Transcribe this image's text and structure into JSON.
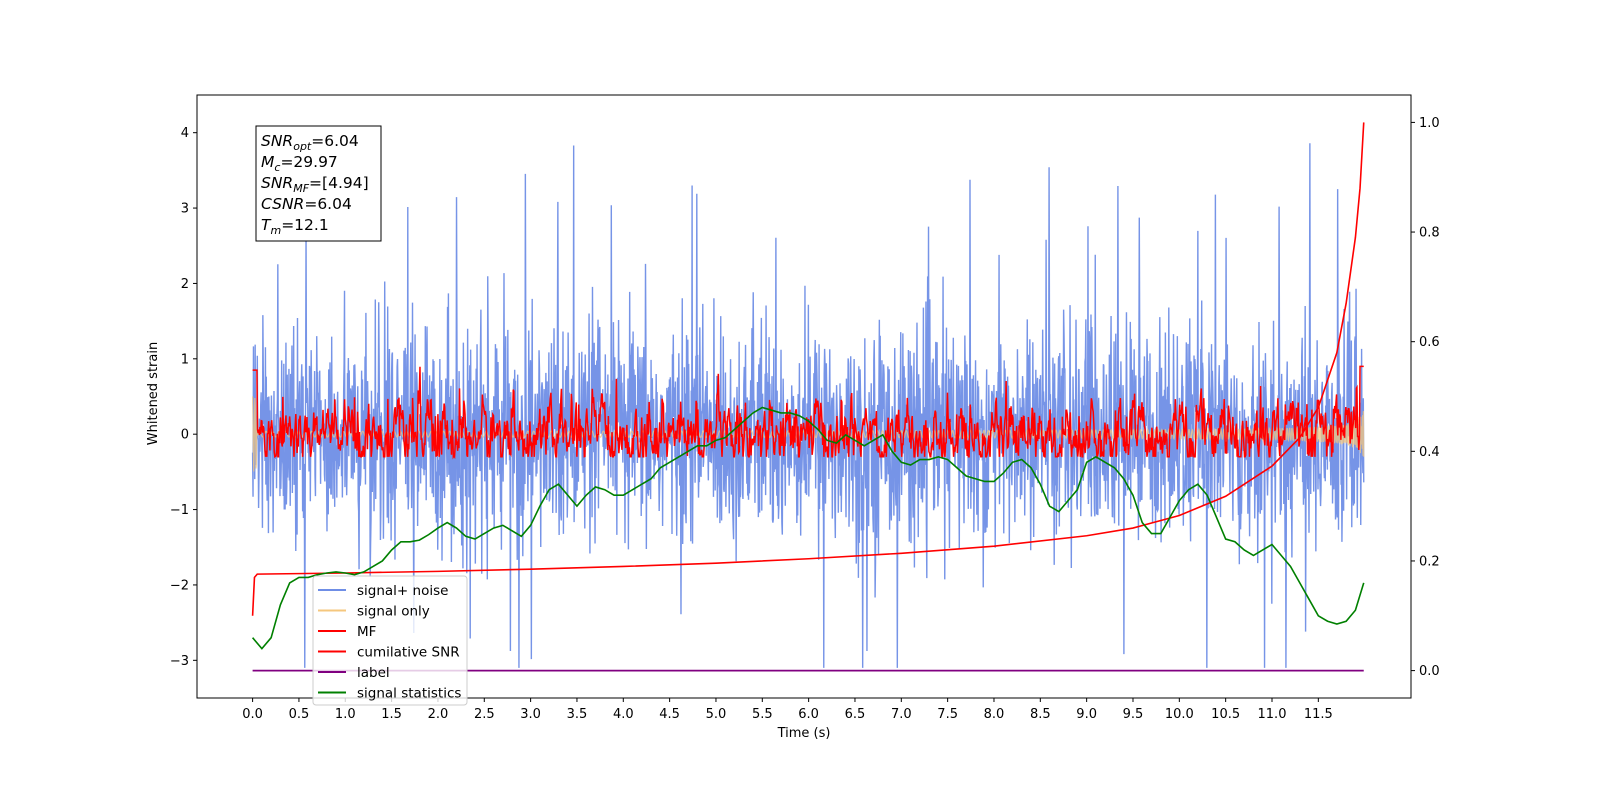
{
  "chart_data": {
    "type": "line",
    "xlabel": "Time (s)",
    "ylabel": "Whitened strain",
    "xlim": [
      -0.6,
      12.5
    ],
    "ylim": [
      -3.5,
      4.5
    ],
    "y2lim": [
      -0.05,
      1.05
    ],
    "x_ticks": [
      "0.0",
      "0.5",
      "1.0",
      "1.5",
      "2.0",
      "2.5",
      "3.0",
      "3.5",
      "4.0",
      "4.5",
      "5.0",
      "5.5",
      "6.0",
      "6.5",
      "7.0",
      "7.5",
      "8.0",
      "8.5",
      "9.0",
      "9.5",
      "10.0",
      "10.5",
      "11.0",
      "11.5"
    ],
    "y_ticks": [
      "4",
      "3",
      "2",
      "1",
      "0",
      "−1",
      "−2",
      "−3"
    ],
    "y_tick_values": [
      4,
      3,
      2,
      1,
      0,
      -1,
      -2,
      -3
    ],
    "y2_ticks": [
      "1.0",
      "0.8",
      "0.6",
      "0.4",
      "0.2",
      "0.0"
    ],
    "y2_tick_values": [
      1.0,
      0.8,
      0.6,
      0.4,
      0.2,
      0.0
    ],
    "annotation": [
      {
        "name": "SNR",
        "sub": "opt",
        "value": "=6.04"
      },
      {
        "name": "M",
        "sub": "c",
        "value": "=29.97"
      },
      {
        "name": "SNR",
        "sub": "MF",
        "value": "=[4.94]"
      },
      {
        "name": "CSNR",
        "sub": "",
        "value": "=6.04"
      },
      {
        "name": "T",
        "sub": "m",
        "value": "=12.1"
      }
    ],
    "legend": {
      "placement": "lower-left",
      "entries": [
        {
          "label": "signal+ noise",
          "color": "#6f8ee6"
        },
        {
          "label": "signal only",
          "color": "#f5c77e"
        },
        {
          "label": "MF",
          "color": "#ff0000"
        },
        {
          "label": "cumilative SNR",
          "color": "#ff0000"
        },
        {
          "label": "label",
          "color": "#800080"
        },
        {
          "label": "signal statistics",
          "color": "#008000"
        }
      ]
    },
    "series": [
      {
        "name": "signal+ noise",
        "axis": "left",
        "color": "#6f8ee6",
        "t_range": [
          0,
          11.99
        ],
        "std": 0.95,
        "y_range": [
          -3.1,
          4.15
        ]
      },
      {
        "name": "signal only",
        "axis": "left",
        "color": "#f5c77e",
        "t_range": [
          0,
          11.99
        ],
        "y_range": [
          -0.85,
          0.85
        ]
      },
      {
        "name": "MF",
        "axis": "left",
        "color": "#ff0000",
        "t_range": [
          0,
          11.99
        ],
        "y_range": [
          -0.3,
          0.95
        ]
      },
      {
        "name": "cumilative SNR",
        "axis": "right",
        "color": "#ff0000",
        "x": [
          0.0,
          0.02,
          0.05,
          1,
          2,
          3,
          4,
          5,
          6,
          7,
          8,
          9,
          9.5,
          10,
          10.5,
          11,
          11.3,
          11.5,
          11.7,
          11.8,
          11.9,
          11.95,
          11.99
        ],
        "values": [
          0.1,
          0.17,
          0.176,
          0.178,
          0.181,
          0.185,
          0.19,
          0.196,
          0.204,
          0.214,
          0.227,
          0.246,
          0.26,
          0.283,
          0.318,
          0.373,
          0.425,
          0.48,
          0.58,
          0.67,
          0.79,
          0.88,
          1.0
        ]
      },
      {
        "name": "label",
        "axis": "right",
        "color": "#800080",
        "x": [
          0,
          11.99
        ],
        "values": [
          0.0,
          0.0
        ]
      },
      {
        "name": "signal statistics",
        "axis": "right",
        "color": "#008000",
        "x": [
          0,
          0.1,
          0.2,
          0.3,
          0.4,
          0.5,
          0.6,
          0.7,
          0.8,
          0.9,
          1.0,
          1.1,
          1.2,
          1.3,
          1.4,
          1.5,
          1.6,
          1.7,
          1.8,
          1.9,
          2.0,
          2.1,
          2.2,
          2.3,
          2.4,
          2.5,
          2.6,
          2.7,
          2.8,
          2.9,
          3.0,
          3.1,
          3.2,
          3.3,
          3.4,
          3.5,
          3.6,
          3.7,
          3.8,
          3.9,
          4.0,
          4.1,
          4.2,
          4.3,
          4.4,
          4.5,
          4.6,
          4.7,
          4.8,
          4.9,
          5.0,
          5.1,
          5.2,
          5.3,
          5.4,
          5.5,
          5.6,
          5.7,
          5.8,
          5.9,
          6.0,
          6.1,
          6.2,
          6.3,
          6.4,
          6.5,
          6.6,
          6.7,
          6.8,
          6.9,
          7.0,
          7.1,
          7.2,
          7.3,
          7.4,
          7.5,
          7.6,
          7.7,
          7.8,
          7.9,
          8.0,
          8.1,
          8.2,
          8.3,
          8.4,
          8.5,
          8.6,
          8.7,
          8.8,
          8.9,
          9.0,
          9.1,
          9.2,
          9.3,
          9.4,
          9.5,
          9.6,
          9.7,
          9.8,
          9.9,
          10.0,
          10.1,
          10.2,
          10.3,
          10.4,
          10.5,
          10.6,
          10.7,
          10.8,
          10.9,
          11.0,
          11.1,
          11.2,
          11.3,
          11.4,
          11.5,
          11.6,
          11.7,
          11.8,
          11.9,
          11.99
        ],
        "values": [
          0.06,
          0.04,
          0.06,
          0.12,
          0.16,
          0.17,
          0.17,
          0.175,
          0.178,
          0.18,
          0.178,
          0.175,
          0.18,
          0.19,
          0.2,
          0.22,
          0.235,
          0.235,
          0.238,
          0.248,
          0.26,
          0.27,
          0.26,
          0.245,
          0.24,
          0.25,
          0.26,
          0.265,
          0.255,
          0.245,
          0.265,
          0.3,
          0.33,
          0.34,
          0.32,
          0.3,
          0.32,
          0.335,
          0.33,
          0.32,
          0.32,
          0.33,
          0.34,
          0.35,
          0.37,
          0.38,
          0.39,
          0.4,
          0.41,
          0.41,
          0.42,
          0.425,
          0.44,
          0.455,
          0.47,
          0.48,
          0.475,
          0.47,
          0.47,
          0.465,
          0.455,
          0.44,
          0.42,
          0.415,
          0.43,
          0.42,
          0.41,
          0.42,
          0.43,
          0.4,
          0.38,
          0.375,
          0.385,
          0.385,
          0.39,
          0.385,
          0.37,
          0.355,
          0.35,
          0.345,
          0.345,
          0.36,
          0.38,
          0.385,
          0.37,
          0.34,
          0.3,
          0.29,
          0.31,
          0.33,
          0.38,
          0.39,
          0.38,
          0.37,
          0.35,
          0.32,
          0.27,
          0.25,
          0.25,
          0.28,
          0.31,
          0.33,
          0.34,
          0.32,
          0.28,
          0.24,
          0.235,
          0.22,
          0.21,
          0.22,
          0.23,
          0.21,
          0.19,
          0.16,
          0.13,
          0.1,
          0.09,
          0.085,
          0.09,
          0.11,
          0.16
        ]
      }
    ]
  }
}
